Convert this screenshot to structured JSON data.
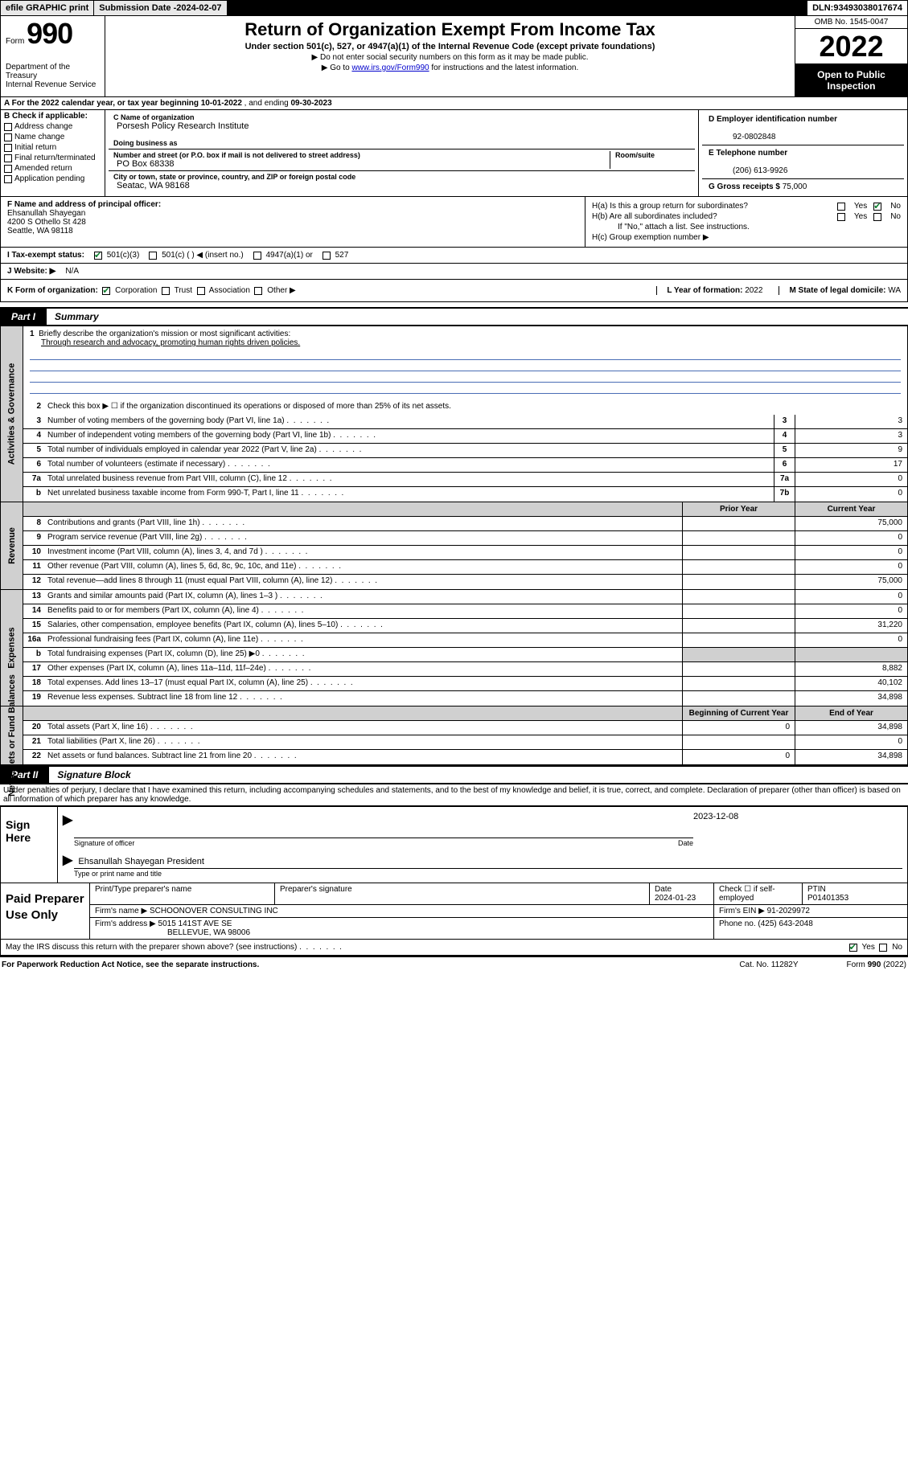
{
  "topbar": {
    "efile": "efile GRAPHIC print",
    "submission_label": "Submission Date - ",
    "submission_date": "2024-02-07",
    "dln_label": "DLN: ",
    "dln": "93493038017674"
  },
  "header": {
    "form_word": "Form",
    "form_number": "990",
    "dept": "Department of the Treasury",
    "irs": "Internal Revenue Service",
    "title": "Return of Organization Exempt From Income Tax",
    "sub": "Under section 501(c), 527, or 4947(a)(1) of the Internal Revenue Code (except private foundations)",
    "note1": "▶ Do not enter social security numbers on this form as it may be made public.",
    "note2_pre": "▶ Go to ",
    "note2_link": "www.irs.gov/Form990",
    "note2_post": " for instructions and the latest information.",
    "omb": "OMB No. 1545-0047",
    "year": "2022",
    "opi": "Open to Public Inspection"
  },
  "line_a": {
    "pre": "A For the 2022 calendar year, or tax year beginning ",
    "begin": "10-01-2022",
    "mid": " , and ending ",
    "end": "09-30-2023"
  },
  "col_b": {
    "label": "B Check if applicable:",
    "items": [
      "Address change",
      "Name change",
      "Initial return",
      "Final return/terminated",
      "Amended return",
      "Application pending"
    ]
  },
  "col_c": {
    "name_label": "C Name of organization",
    "name": "Porsesh Policy Research Institute",
    "dba_label": "Doing business as",
    "dba": "",
    "addr_label": "Number and street (or P.O. box if mail is not delivered to street address)",
    "room_label": "Room/suite",
    "addr": "PO Box 68338",
    "city_label": "City or town, state or province, country, and ZIP or foreign postal code",
    "city": "Seatac, WA  98168"
  },
  "col_d": {
    "label": "D Employer identification number",
    "val": "92-0802848"
  },
  "col_e": {
    "label": "E Telephone number",
    "val": "(206) 613-9926"
  },
  "col_g": {
    "label": "G Gross receipts $",
    "val": "75,000"
  },
  "section_f": {
    "label": "F Name and address of principal officer:",
    "name": "Ehsanullah Shayegan",
    "addr1": "4200 S Othello St 428",
    "addr2": "Seattle, WA  98118"
  },
  "section_h": {
    "a": "H(a)  Is this a group return for subordinates?",
    "b": "H(b)  Are all subordinates included?",
    "b_note": "If \"No,\" attach a list. See instructions.",
    "c": "H(c)  Group exemption number ▶",
    "yes": "Yes",
    "no": "No"
  },
  "row_i": {
    "label": "I   Tax-exempt status:",
    "opts": [
      "501(c)(3)",
      "501(c) (  ) ◀ (insert no.)",
      "4947(a)(1) or",
      "527"
    ]
  },
  "row_j": {
    "label": "J   Website: ▶",
    "val": "N/A"
  },
  "row_k": {
    "label": "K Form of organization:",
    "opts": [
      "Corporation",
      "Trust",
      "Association",
      "Other ▶"
    ],
    "l_label": "L Year of formation:",
    "l_val": "2022",
    "m_label": "M State of legal domicile:",
    "m_val": "WA"
  },
  "part1": {
    "num": "Part I",
    "title": "Summary"
  },
  "sides": {
    "ag": "Activities & Governance",
    "rev": "Revenue",
    "exp": "Expenses",
    "na": "Net Assets or Fund Balances"
  },
  "q1": {
    "num": "1",
    "text": "Briefly describe the organization's mission or most significant activities:",
    "mission": "Through research and advocacy, promoting human rights driven policies."
  },
  "q2": {
    "num": "2",
    "text": "Check this box ▶ ☐  if the organization discontinued its operations or disposed of more than 25% of its net assets."
  },
  "lines_ag": [
    {
      "num": "3",
      "text": "Number of voting members of the governing body (Part VI, line 1a)",
      "box": "3",
      "val": "3"
    },
    {
      "num": "4",
      "text": "Number of independent voting members of the governing body (Part VI, line 1b)",
      "box": "4",
      "val": "3"
    },
    {
      "num": "5",
      "text": "Total number of individuals employed in calendar year 2022 (Part V, line 2a)",
      "box": "5",
      "val": "9"
    },
    {
      "num": "6",
      "text": "Total number of volunteers (estimate if necessary)",
      "box": "6",
      "val": "17"
    },
    {
      "num": "7a",
      "text": "Total unrelated business revenue from Part VIII, column (C), line 12",
      "box": "7a",
      "val": "0"
    },
    {
      "num": "b",
      "text": "Net unrelated business taxable income from Form 990-T, Part I, line 11",
      "box": "7b",
      "val": "0"
    }
  ],
  "col_headers": {
    "prior": "Prior Year",
    "current": "Current Year",
    "boy": "Beginning of Current Year",
    "eoy": "End of Year"
  },
  "lines_rev": [
    {
      "num": "8",
      "text": "Contributions and grants (Part VIII, line 1h)",
      "prior": "",
      "curr": "75,000"
    },
    {
      "num": "9",
      "text": "Program service revenue (Part VIII, line 2g)",
      "prior": "",
      "curr": "0"
    },
    {
      "num": "10",
      "text": "Investment income (Part VIII, column (A), lines 3, 4, and 7d )",
      "prior": "",
      "curr": "0"
    },
    {
      "num": "11",
      "text": "Other revenue (Part VIII, column (A), lines 5, 6d, 8c, 9c, 10c, and 11e)",
      "prior": "",
      "curr": "0"
    },
    {
      "num": "12",
      "text": "Total revenue—add lines 8 through 11 (must equal Part VIII, column (A), line 12)",
      "prior": "",
      "curr": "75,000"
    }
  ],
  "lines_exp": [
    {
      "num": "13",
      "text": "Grants and similar amounts paid (Part IX, column (A), lines 1–3 )",
      "prior": "",
      "curr": "0"
    },
    {
      "num": "14",
      "text": "Benefits paid to or for members (Part IX, column (A), line 4)",
      "prior": "",
      "curr": "0"
    },
    {
      "num": "15",
      "text": "Salaries, other compensation, employee benefits (Part IX, column (A), lines 5–10)",
      "prior": "",
      "curr": "31,220"
    },
    {
      "num": "16a",
      "text": "Professional fundraising fees (Part IX, column (A), line 11e)",
      "prior": "",
      "curr": "0"
    },
    {
      "num": "b",
      "text": "Total fundraising expenses (Part IX, column (D), line 25) ▶0",
      "single": true
    },
    {
      "num": "17",
      "text": "Other expenses (Part IX, column (A), lines 11a–11d, 11f–24e)",
      "prior": "",
      "curr": "8,882"
    },
    {
      "num": "18",
      "text": "Total expenses. Add lines 13–17 (must equal Part IX, column (A), line 25)",
      "prior": "",
      "curr": "40,102"
    },
    {
      "num": "19",
      "text": "Revenue less expenses. Subtract line 18 from line 12",
      "prior": "",
      "curr": "34,898"
    }
  ],
  "lines_na": [
    {
      "num": "20",
      "text": "Total assets (Part X, line 16)",
      "prior": "0",
      "curr": "34,898"
    },
    {
      "num": "21",
      "text": "Total liabilities (Part X, line 26)",
      "prior": "",
      "curr": "0"
    },
    {
      "num": "22",
      "text": "Net assets or fund balances. Subtract line 21 from line 20",
      "prior": "0",
      "curr": "34,898"
    }
  ],
  "part2": {
    "num": "Part II",
    "title": "Signature Block"
  },
  "decl": "Under penalties of perjury, I declare that I have examined this return, including accompanying schedules and statements, and to the best of my knowledge and belief, it is true, correct, and complete. Declaration of preparer (other than officer) is based on all information of which preparer has any knowledge.",
  "sign": {
    "here": "Sign Here",
    "sig_label": "Signature of officer",
    "date_label": "Date",
    "date": "2023-12-08",
    "name": "Ehsanullah Shayegan President",
    "name_label": "Type or print name and title"
  },
  "prep": {
    "label": "Paid Preparer Use Only",
    "h": [
      "Print/Type preparer's name",
      "Preparer's signature",
      "Date",
      "",
      "PTIN"
    ],
    "date": "2024-01-23",
    "check_label": "Check ☐ if self-employed",
    "ptin": "P01401353",
    "firm_name_label": "Firm's name    ▶",
    "firm_name": "SCHOONOVER CONSULTING INC",
    "firm_ein_label": "Firm's EIN ▶",
    "firm_ein": "91-2029972",
    "firm_addr_label": "Firm's address ▶",
    "firm_addr1": "5015 141ST AVE SE",
    "firm_addr2": "BELLEVUE, WA  98006",
    "phone_label": "Phone no.",
    "phone": "(425) 643-2048"
  },
  "discuss": {
    "text": "May the IRS discuss this return with the preparer shown above? (see instructions)",
    "yes": "Yes",
    "no": "No"
  },
  "footer": {
    "left": "For Paperwork Reduction Act Notice, see the separate instructions.",
    "mid": "Cat. No. 11282Y",
    "right": "Form 990 (2022)"
  },
  "colors": {
    "link": "#0000cc",
    "rule": "#4a6db5",
    "shade": "#d0d0d0",
    "check": "#0a7d2c"
  }
}
